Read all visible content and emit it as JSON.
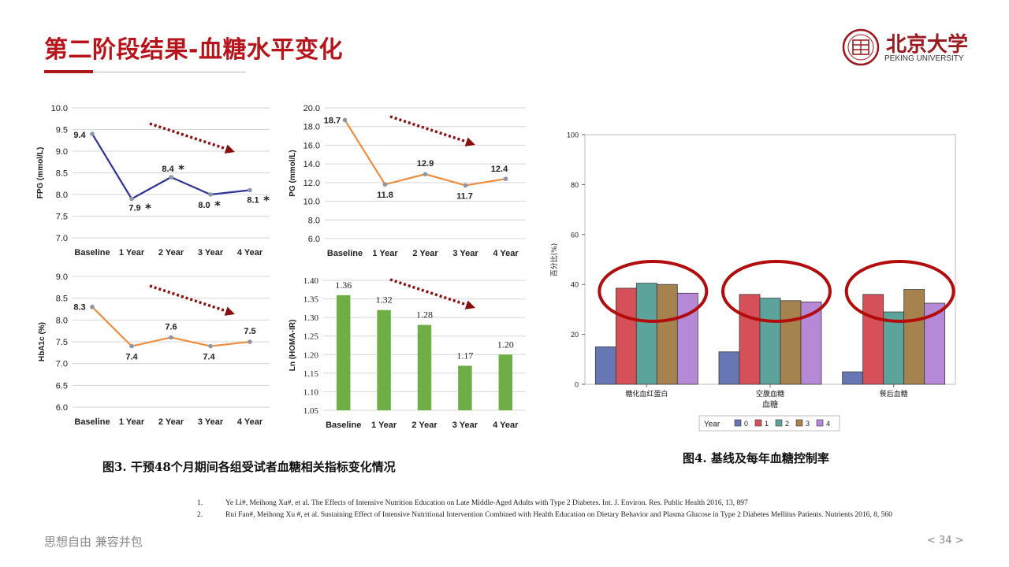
{
  "header": {
    "title": "第二阶段结果-血糖水平变化",
    "logo_cn": "北京大学",
    "logo_en": "PEKING UNIVERSITY"
  },
  "colors": {
    "brand_red": "#b8141b",
    "blue_line": "#2e3592",
    "orange_line": "#ef8c3d",
    "green_bar": "#6fad46",
    "dark_red_arrow": "#8b0e0e",
    "ellipse_red": "#b30c0c"
  },
  "chart_data": [
    {
      "id": "fpg",
      "type": "line",
      "ylabel": "FPG (mmol/L)",
      "categories": [
        "Baseline",
        "1 Year",
        "2 Year",
        "3 Year",
        "4 Year"
      ],
      "ylim": [
        7.0,
        10.0
      ],
      "yticks": [
        "7.0",
        "7.5",
        "8.0",
        "8.5",
        "9.0",
        "9.5",
        "10.0"
      ],
      "series": [
        {
          "values": [
            9.4,
            7.9,
            8.4,
            8.0,
            8.1
          ]
        }
      ],
      "data_labels": [
        "9.4",
        "7.9",
        "8.4",
        "8.0",
        "8.1"
      ],
      "significance": [
        "",
        "*",
        "*",
        "*",
        "*"
      ],
      "trend_arrow": "down"
    },
    {
      "id": "pg",
      "type": "line",
      "ylabel": "PG (mmol/L)",
      "categories": [
        "Baseline",
        "1 Year",
        "2 Year",
        "3 Year",
        "4 Year"
      ],
      "ylim": [
        6.0,
        20.0
      ],
      "yticks": [
        "6.0",
        "8.0",
        "10.0",
        "12.0",
        "14.0",
        "16.0",
        "18.0",
        "20.0"
      ],
      "series": [
        {
          "values": [
            18.7,
            11.8,
            12.9,
            11.7,
            12.4
          ]
        }
      ],
      "data_labels": [
        "18.7",
        "11.8",
        "12.9",
        "11.7",
        "12.4"
      ],
      "trend_arrow": "down"
    },
    {
      "id": "hba1c",
      "type": "line",
      "ylabel": "HbA1c (%)",
      "categories": [
        "Baseline",
        "1 Year",
        "2 Year",
        "3 Year",
        "4 Year"
      ],
      "ylim": [
        6.0,
        9.0
      ],
      "yticks": [
        "6.0",
        "6.5",
        "7.0",
        "7.5",
        "8.0",
        "8.5",
        "9.0"
      ],
      "series": [
        {
          "values": [
            8.3,
            7.4,
            7.6,
            7.4,
            7.5
          ]
        }
      ],
      "data_labels": [
        "8.3",
        "7.4",
        "7.6",
        "7.4",
        "7.5"
      ],
      "trend_arrow": "down"
    },
    {
      "id": "homa",
      "type": "bar",
      "ylabel": "Ln (HOMA-IR)",
      "categories": [
        "Baseline",
        "1 Year",
        "2 Year",
        "3 Year",
        "4 Year"
      ],
      "ylim": [
        1.05,
        1.4
      ],
      "yticks": [
        "1.05",
        "1.10",
        "1.15",
        "1.20",
        "1.25",
        "1.30",
        "1.35",
        "1.40"
      ],
      "values": [
        1.36,
        1.32,
        1.28,
        1.17,
        1.2
      ],
      "data_labels": [
        "1.36",
        "1.32",
        "1.28",
        "1.17",
        "1.20"
      ],
      "trend_arrow": "down"
    },
    {
      "id": "control_rate",
      "type": "bar",
      "ylabel": "百分比(%)",
      "xlabel": "血糖",
      "categories": [
        "糖化血红蛋白",
        "空腹血糖",
        "餐后血糖"
      ],
      "ylim": [
        0,
        100
      ],
      "yticks": [
        "0",
        "20",
        "40",
        "60",
        "80",
        "100"
      ],
      "legend_title": "Year",
      "legend_position": "bottom",
      "series": [
        {
          "name": "0",
          "color": "#6677b3",
          "values": [
            15,
            13,
            5
          ]
        },
        {
          "name": "1",
          "color": "#d6505a",
          "values": [
            38.5,
            36,
            36
          ]
        },
        {
          "name": "2",
          "color": "#5ba39b",
          "values": [
            40.5,
            34.5,
            29
          ]
        },
        {
          "name": "3",
          "color": "#a6824f",
          "values": [
            40,
            33.5,
            38
          ]
        },
        {
          "name": "4",
          "color": "#b689d6",
          "values": [
            36.5,
            33,
            32.5
          ]
        }
      ],
      "highlight_ellipses": true
    }
  ],
  "captions": {
    "fig3": "图3. 干预48个月期间各组受试者血糖相关指标变化情况",
    "fig4": "图4. 基线及每年血糖控制率"
  },
  "references": [
    {
      "num": "1.",
      "text": "Ye Li#, Meihong Xu#, et al. The Effects of Intensive Nutrition Education on Late Middle-Aged Adults with Type 2 Diabetes. Int. J. Environ. Res. Public Health 2016, 13, 897"
    },
    {
      "num": "2.",
      "text": "Rui Fan#, Meihong Xu #, et al. Sustaining Effect of Intensive Nutritional Intervention Combined with Health Education on Dietary Behavior and Plasma Glucose in Type 2 Diabetes Mellitus Patients. Nutrients 2016, 8, 560"
    }
  ],
  "footer": {
    "slogan": "思想自由 兼容并包",
    "page": "< 34 >"
  }
}
